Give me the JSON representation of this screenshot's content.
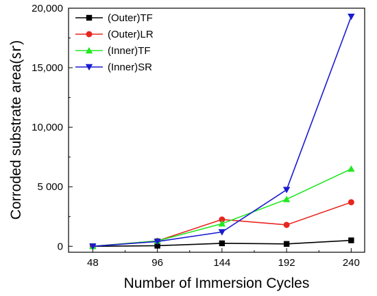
{
  "chart_data": {
    "type": "line",
    "x": [
      48,
      96,
      144,
      192,
      240
    ],
    "xlabel": "Number of Immersion Cycles",
    "ylabel": "Corroded substrate area(㏛)",
    "ylim": [
      -500,
      20000
    ],
    "x_tick_labels": [
      "48",
      "96",
      "144",
      "192",
      "240"
    ],
    "y_ticks": [
      0,
      5000,
      10000,
      15000,
      20000
    ],
    "y_tick_labels": [
      "0",
      "5 000",
      "10,000",
      "15,000",
      "20,000"
    ],
    "legend_position": "top-left",
    "grid": false,
    "series": [
      {
        "name": "(Outer)TF",
        "color": "#000000",
        "marker": "square",
        "values": [
          0,
          50,
          250,
          200,
          500
        ]
      },
      {
        "name": "(Outer)LR",
        "color": "#e8251f",
        "marker": "circle",
        "values": [
          0,
          450,
          2250,
          1800,
          3700
        ]
      },
      {
        "name": "(Inner)TF",
        "color": "#22e822",
        "marker": "triangle-up",
        "values": [
          0,
          450,
          1900,
          3950,
          6500
        ]
      },
      {
        "name": "(Inner)SR",
        "color": "#1a1ad0",
        "marker": "triangle-down",
        "values": [
          0,
          400,
          1200,
          4750,
          19300
        ]
      }
    ]
  }
}
